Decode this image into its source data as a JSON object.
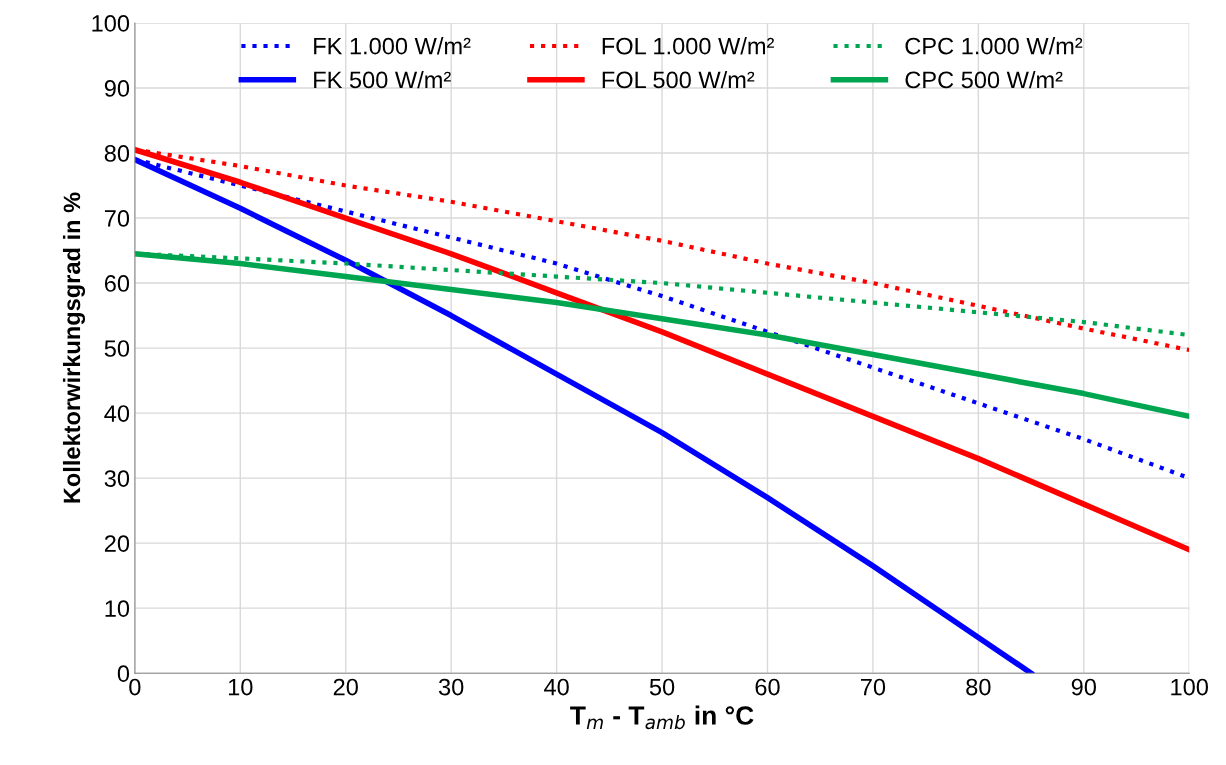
{
  "chart_data": {
    "type": "line",
    "xlabel": "T$_{m}$ - T$_{amb}$ in °C",
    "ylabel": "Kollektorwirkungsgrad in %",
    "x": [
      0,
      10,
      20,
      30,
      40,
      50,
      60,
      70,
      80,
      90,
      100
    ],
    "xlim": [
      0,
      100
    ],
    "xticks": [
      0,
      10,
      20,
      30,
      40,
      50,
      60,
      70,
      80,
      90,
      100
    ],
    "ylim": [
      0,
      100
    ],
    "yticks": [
      0,
      10,
      20,
      30,
      40,
      50,
      60,
      70,
      80,
      90,
      100
    ],
    "grid": true,
    "legend": "top",
    "marker": "none",
    "series": [
      {
        "name": "FK 1.000 W/m²",
        "color": "#0000ff",
        "line_style": "dotted",
        "values": [
          79,
          75,
          71,
          67,
          63,
          58,
          52.5,
          47,
          41.5,
          36,
          30
        ]
      },
      {
        "name": "FK 500 W/m²",
        "color": "#0000ff",
        "line_style": "solid",
        "x": [
          0,
          10,
          20,
          30,
          40,
          50,
          60,
          70,
          80,
          85
        ],
        "values": [
          79,
          71.5,
          63.5,
          55,
          46,
          37,
          27,
          16.5,
          5.5,
          0
        ]
      },
      {
        "name": "FOL 1.000 W/m²",
        "color": "#ff0000",
        "line_style": "dotted",
        "values": [
          80.5,
          78,
          75,
          72.5,
          69.5,
          66.5,
          63,
          60,
          56.5,
          53,
          49.7
        ]
      },
      {
        "name": "FOL 500 W/m²",
        "color": "#ff0000",
        "line_style": "solid",
        "values": [
          80.5,
          75.5,
          70,
          64.5,
          58.5,
          52.5,
          46,
          39.5,
          33,
          26,
          19
        ]
      },
      {
        "name": "CPC 1.000 W/m²",
        "color": "#00a550",
        "line_style": "dotted",
        "values": [
          64.5,
          63.8,
          63,
          62,
          61,
          60,
          58.5,
          57,
          55.5,
          54,
          52
        ]
      },
      {
        "name": "CPC 500 W/m²",
        "color": "#00a550",
        "line_style": "solid",
        "values": [
          64.5,
          63,
          61,
          59,
          57,
          54.5,
          52,
          49,
          46,
          43,
          39.5
        ]
      }
    ]
  }
}
